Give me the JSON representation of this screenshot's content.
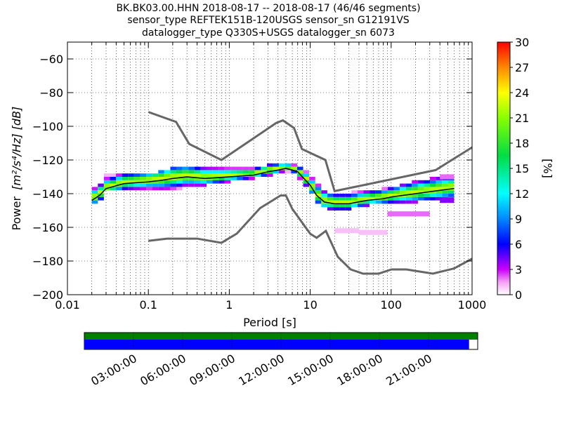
{
  "title_lines": [
    "BK.BK03.00.HHN   2018-08-17 -- 2018-08-17  (46/46 segments)",
    "sensor_type REFTEK151B-120USGS sensor_sn G12191VS",
    "datalogger_type Q330S+USGS datalogger_sn 6073"
  ],
  "chart_data": {
    "type": "heatmap",
    "xscale": "log",
    "xlim": [
      0.01,
      1000
    ],
    "ylim": [
      -200,
      -50
    ],
    "xlabel": "Period [s]",
    "ylabel_prefix": "Power",
    "ylabel_math": "[m²/s⁴/Hz] [dB]",
    "x_tick_labels": [
      "0.01",
      "0.1",
      "1",
      "10",
      "100",
      "1000"
    ],
    "x_ticks": [
      0.01,
      0.1,
      1,
      10,
      100,
      1000
    ],
    "y_ticks": [
      -200,
      -180,
      -160,
      -140,
      -120,
      -100,
      -80,
      -60
    ],
    "y_tick_labels": [
      "−200",
      "−180",
      "−160",
      "−140",
      "−120",
      "−100",
      "−80",
      "−60"
    ],
    "grid": "dotted (minor log grid)",
    "colorbar": {
      "label": "[%]",
      "range": [
        0,
        30
      ],
      "ticks": [
        0,
        3,
        6,
        9,
        12,
        15,
        18,
        21,
        24,
        27,
        30
      ],
      "colormap": "pqlx"
    },
    "noise_models": {
      "nhnm": {
        "period": [
          0.1,
          0.22,
          0.32,
          0.8,
          3.8,
          4.6,
          6.3,
          7.9,
          15.4,
          20,
          354.8,
          1000
        ],
        "power": [
          -91.5,
          -97.4,
          -110.5,
          -120.0,
          -98.0,
          -96.5,
          -101.0,
          -113.5,
          -120.0,
          -138.5,
          -126.0,
          -112.5
        ]
      },
      "nlnm": {
        "period": [
          0.1,
          0.17,
          0.4,
          0.8,
          1.24,
          2.4,
          4.3,
          5.0,
          6.0,
          10.0,
          12.0,
          15.6,
          21.9,
          31.6,
          45.0,
          70.0,
          101.0,
          154.0,
          328.0,
          600.0,
          1000.0
        ],
        "power": [
          -168.0,
          -166.7,
          -166.7,
          -169.2,
          -163.7,
          -148.6,
          -141.1,
          -141.1,
          -149.0,
          -163.8,
          -166.2,
          -162.1,
          -177.5,
          -185.0,
          -187.5,
          -187.5,
          -185.0,
          -185.0,
          -187.5,
          -184.4,
          -178.6
        ]
      }
    },
    "psd_mode_curve": {
      "period": [
        0.02,
        0.025,
        0.03,
        0.05,
        0.1,
        0.15,
        0.2,
        0.3,
        0.5,
        1,
        2,
        3,
        4,
        5,
        6,
        7,
        8,
        10,
        12,
        15,
        20,
        30,
        50,
        80,
        100,
        200,
        400,
        600
      ],
      "power": [
        -144,
        -141,
        -137,
        -134,
        -133,
        -132,
        -131,
        -130,
        -131,
        -130,
        -129,
        -127,
        -126,
        -125,
        -126,
        -127,
        -130,
        -135,
        -141,
        -145,
        -146,
        -146,
        -144,
        -143,
        -142,
        -140,
        -138,
        -137
      ]
    },
    "psd_band": {
      "period": [
        0.02,
        0.025,
        0.03,
        0.05,
        0.1,
        0.15,
        0.2,
        0.3,
        0.5,
        1,
        2,
        3,
        4,
        5,
        6,
        7,
        8,
        10,
        12,
        15,
        20,
        30,
        50,
        80,
        100,
        200,
        400,
        600
      ],
      "upper": [
        -138,
        -136,
        -130,
        -129,
        -129,
        -127,
        -125,
        -124,
        -125,
        -126,
        -126,
        -124,
        -123,
        -123,
        -124,
        -124,
        -126,
        -130,
        -134,
        -139,
        -141,
        -140,
        -139,
        -138,
        -137,
        -133,
        -131,
        -130
      ],
      "lower": [
        -148,
        -146,
        -140,
        -139,
        -139,
        -140,
        -139,
        -137,
        -136,
        -134,
        -132,
        -131,
        -129,
        -128,
        -128,
        -130,
        -134,
        -139,
        -146,
        -150,
        -151,
        -150,
        -148,
        -147,
        -147,
        -146,
        -145,
        -144
      ]
    },
    "outlier_bands": [
      {
        "period_range": [
          20,
          40
        ],
        "power": -162,
        "percent": 1
      },
      {
        "period_range": [
          40,
          90
        ],
        "power": -163,
        "percent": 1
      },
      {
        "period_range": [
          90,
          300
        ],
        "power": -152,
        "percent": 2
      },
      {
        "period_range": [
          400,
          600
        ],
        "power": -144,
        "percent": 4
      },
      {
        "period_range": [
          400,
          600
        ],
        "power": -130,
        "percent": 2
      }
    ]
  },
  "timeline": {
    "tick_labels": [
      "03:00:00",
      "06:00:00",
      "09:00:00",
      "12:00:00",
      "15:00:00",
      "18:00:00",
      "21:00:00"
    ],
    "coverage_color": "#0000ff",
    "data_color": "#008000",
    "coverage_fraction": 0.978
  },
  "colors": {
    "noise_model": "#666666",
    "mode": "#000000"
  }
}
